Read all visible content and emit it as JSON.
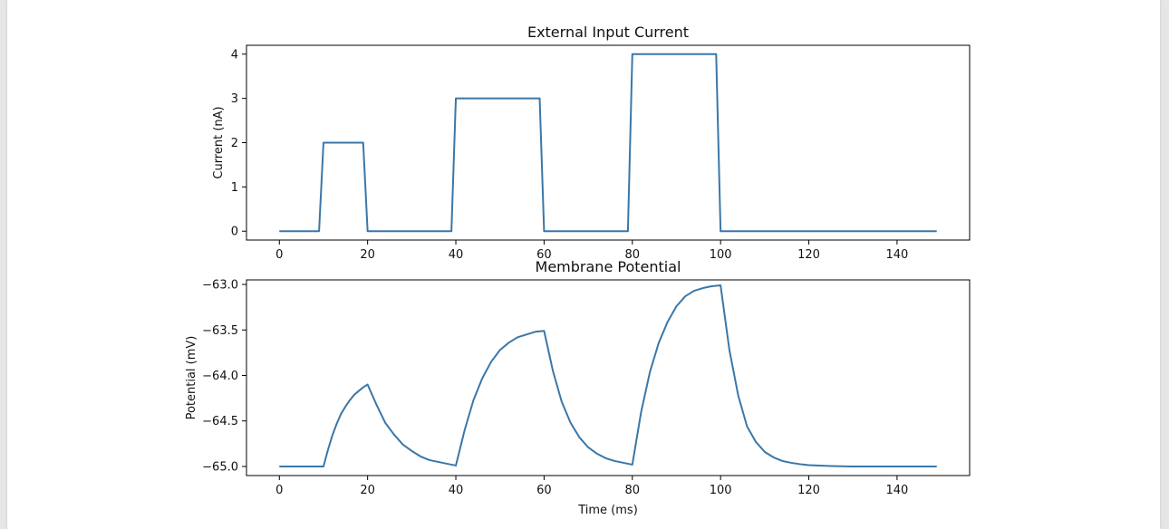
{
  "chart_data": [
    {
      "type": "line",
      "title": "External Input Current",
      "xlabel": "",
      "ylabel": "Current (nA)",
      "xlim": [
        -7.45,
        156.45
      ],
      "ylim": [
        -0.2,
        4.2
      ],
      "xticks": [
        0,
        20,
        40,
        60,
        80,
        100,
        120,
        140
      ],
      "xtick_labels": [
        "0",
        "20",
        "40",
        "60",
        "80",
        "100",
        "120",
        "140"
      ],
      "yticks": [
        0,
        1,
        2,
        3,
        4
      ],
      "ytick_labels": [
        "0",
        "1",
        "2",
        "3",
        "4"
      ],
      "grid": false,
      "color": "#3a77a8",
      "x": [
        0,
        9,
        10,
        19,
        20,
        39,
        40,
        59,
        60,
        79,
        80,
        99,
        100,
        149
      ],
      "y": [
        0,
        0,
        2,
        2,
        0,
        0,
        3,
        3,
        0,
        0,
        4,
        4,
        0,
        0
      ]
    },
    {
      "type": "line",
      "title": "Membrane Potential",
      "xlabel": "Time (ms)",
      "ylabel": "Potential (mV)",
      "xlim": [
        -7.45,
        156.45
      ],
      "ylim": [
        -65.1,
        -62.95
      ],
      "xticks": [
        0,
        20,
        40,
        60,
        80,
        100,
        120,
        140
      ],
      "xtick_labels": [
        "0",
        "20",
        "40",
        "60",
        "80",
        "100",
        "120",
        "140"
      ],
      "yticks": [
        -63.0,
        -63.5,
        -64.0,
        -64.5,
        -65.0
      ],
      "ytick_labels": [
        "−63.0",
        "−63.5",
        "−64.0",
        "−64.5",
        "−65.0"
      ],
      "grid": false,
      "color": "#3a77a8",
      "x": [
        0,
        10,
        11,
        12,
        13,
        14,
        15,
        16,
        17,
        18,
        19,
        20,
        22,
        24,
        26,
        28,
        30,
        32,
        34,
        36,
        38,
        40,
        42,
        44,
        46,
        48,
        50,
        52,
        54,
        56,
        58,
        60,
        62,
        64,
        66,
        68,
        70,
        72,
        74,
        76,
        78,
        80,
        82,
        84,
        86,
        88,
        90,
        92,
        94,
        96,
        98,
        100,
        102,
        104,
        106,
        108,
        110,
        112,
        114,
        116,
        118,
        120,
        125,
        130,
        140,
        149
      ],
      "y": [
        -65.0,
        -65.0,
        -64.82,
        -64.66,
        -64.53,
        -64.42,
        -64.34,
        -64.27,
        -64.21,
        -64.17,
        -64.13,
        -64.1,
        -64.32,
        -64.52,
        -64.65,
        -64.76,
        -64.83,
        -64.89,
        -64.93,
        -64.95,
        -64.97,
        -64.99,
        -64.6,
        -64.27,
        -64.03,
        -63.85,
        -63.72,
        -63.64,
        -63.58,
        -63.55,
        -63.52,
        -63.51,
        -63.95,
        -64.29,
        -64.52,
        -64.68,
        -64.79,
        -64.86,
        -64.91,
        -64.94,
        -64.96,
        -64.98,
        -64.4,
        -63.96,
        -63.64,
        -63.41,
        -63.24,
        -63.13,
        -63.07,
        -63.04,
        -63.02,
        -63.01,
        -63.72,
        -64.22,
        -64.56,
        -64.73,
        -64.84,
        -64.9,
        -64.94,
        -64.96,
        -64.975,
        -64.985,
        -64.995,
        -65.0,
        -65.0,
        -65.0
      ]
    }
  ]
}
